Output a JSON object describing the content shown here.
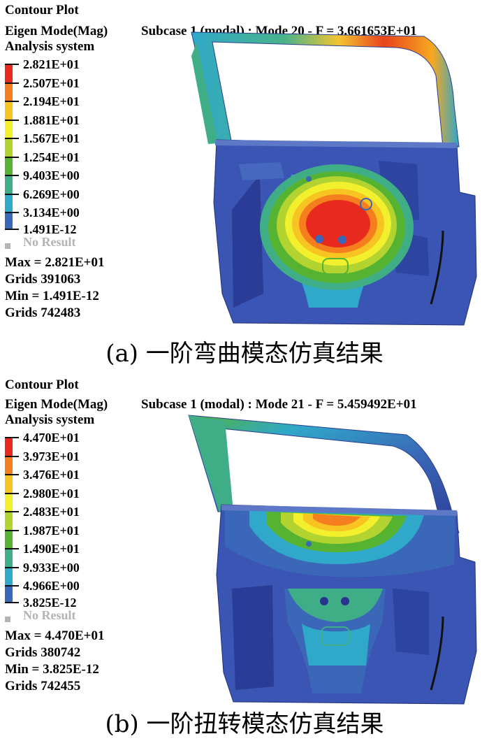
{
  "panels": [
    {
      "header": {
        "line1": "Contour Plot",
        "line2": "Eigen Mode(Mag)",
        "subcase": "Subcase 1 (modal) : Mode 20 - F = 3.661653E+01",
        "line3": "Analysis system"
      },
      "legend": {
        "levels": [
          "2.821E+01",
          "2.507E+01",
          "2.194E+01",
          "1.881E+01",
          "1.567E+01",
          "1.254E+01",
          "9.403E+00",
          "6.269E+00",
          "3.134E+00",
          "1.491E-12"
        ],
        "colors": [
          "#e8291d",
          "#f57f1f",
          "#f7c421",
          "#f2ef2c",
          "#b3d331",
          "#56b331",
          "#3fae86",
          "#2fa8c9",
          "#3a67b7",
          "#27338f"
        ],
        "no_result": "No Result"
      },
      "stats": {
        "max": "Max =  2.821E+01",
        "max_grids": "Grids 391063",
        "min": "Min =  1.491E-12",
        "min_grids": "Grids 742483"
      },
      "caption": "(a) 一阶弯曲模态仿真结果"
    },
    {
      "header": {
        "line1": "Contour Plot",
        "line2": "Eigen Mode(Mag)",
        "subcase": "Subcase 1 (modal) : Mode 21 - F = 5.459492E+01",
        "line3": "Analysis system"
      },
      "legend": {
        "levels": [
          "4.470E+01",
          "3.973E+01",
          "3.476E+01",
          "2.980E+01",
          "2.483E+01",
          "1.987E+01",
          "1.490E+01",
          "9.933E+00",
          "4.966E+00",
          "3.825E-12"
        ],
        "colors": [
          "#e8291d",
          "#f57f1f",
          "#f7c421",
          "#f2ef2c",
          "#b3d331",
          "#56b331",
          "#3fae86",
          "#2fa8c9",
          "#3a67b7",
          "#27338f"
        ],
        "no_result": "No Result"
      },
      "stats": {
        "max": "Max =  4.470E+01",
        "max_grids": "Grids 380742",
        "min": "Min =  3.825E-12",
        "min_grids": "Grids 742455"
      },
      "caption": "(b) 一阶扭转模态仿真结果"
    }
  ]
}
